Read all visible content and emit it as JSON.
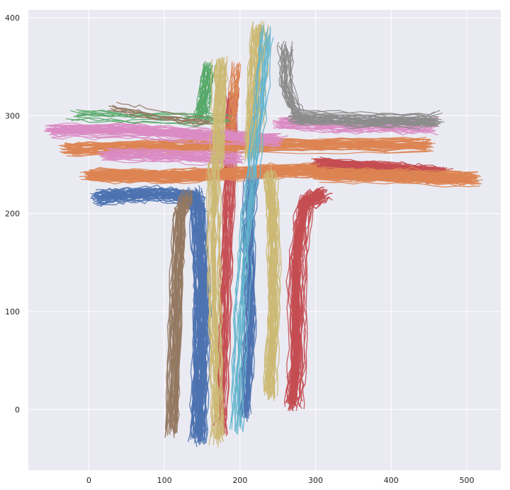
{
  "chart_data": {
    "type": "line",
    "title": "",
    "xlabel": "",
    "ylabel": "",
    "xlim": [
      -80,
      545
    ],
    "ylim": [
      -62,
      408
    ],
    "xticks": [
      0,
      100,
      200,
      300,
      400,
      500
    ],
    "yticks": [
      0,
      100,
      200,
      300,
      400
    ],
    "grid": true,
    "legend": "none",
    "background": "#eaeaf2",
    "palette": [
      "#4c72b0",
      "#dd8452",
      "#55a868",
      "#c44e52",
      "#8172b3",
      "#937860",
      "#da8bc3",
      "#8c8c8c",
      "#ccb974",
      "#64b5cd"
    ],
    "series": [
      {
        "color": "#4c72b0",
        "group": "left-arm-lower",
        "count": 45,
        "points": [
          [
            140,
            215
          ],
          [
            100,
            220
          ],
          [
            50,
            219
          ],
          [
            10,
            216
          ]
        ]
      },
      {
        "color": "#4c72b0",
        "group": "bottom-center",
        "count": 60,
        "points": [
          [
            140,
            220
          ],
          [
            145,
            200
          ],
          [
            150,
            120
          ],
          [
            148,
            50
          ],
          [
            145,
            -30
          ]
        ]
      },
      {
        "color": "#4c72b0",
        "group": "bottom-right-strands",
        "count": 35,
        "points": [
          [
            215,
            240
          ],
          [
            210,
            180
          ],
          [
            212,
            90
          ],
          [
            205,
            -5
          ]
        ]
      },
      {
        "color": "#937860",
        "group": "brown-leg",
        "count": 35,
        "points": [
          [
            130,
            220
          ],
          [
            120,
            200
          ],
          [
            115,
            100
          ],
          [
            110,
            -20
          ]
        ]
      },
      {
        "color": "#c44e52",
        "group": "right-leg",
        "count": 70,
        "points": [
          [
            310,
            220
          ],
          [
            285,
            210
          ],
          [
            275,
            150
          ],
          [
            275,
            50
          ],
          [
            270,
            5
          ]
        ]
      },
      {
        "color": "#c44e52",
        "group": "right-arm-lower",
        "count": 70,
        "points": [
          [
            300,
            250
          ],
          [
            400,
            245
          ],
          [
            470,
            240
          ]
        ]
      },
      {
        "color": "#c44e52",
        "group": "center-strands",
        "count": 25,
        "points": [
          [
            190,
            320
          ],
          [
            185,
            200
          ],
          [
            180,
            100
          ],
          [
            175,
            -20
          ]
        ]
      },
      {
        "color": "#dd8452",
        "group": "arm-orange-left",
        "count": 60,
        "points": [
          [
            0,
            240
          ],
          [
            100,
            238
          ],
          [
            200,
            242
          ],
          [
            300,
            245
          ]
        ]
      },
      {
        "color": "#dd8452",
        "group": "arm-orange-right",
        "count": 60,
        "points": [
          [
            300,
            240
          ],
          [
            400,
            238
          ],
          [
            510,
            235
          ]
        ]
      },
      {
        "color": "#dd8452",
        "group": "arm-orange-upper",
        "count": 40,
        "points": [
          [
            -30,
            265
          ],
          [
            100,
            268
          ],
          [
            250,
            270
          ],
          [
            450,
            270
          ]
        ]
      },
      {
        "color": "#dd8452",
        "group": "top-orange",
        "count": 15,
        "points": [
          [
            195,
            350
          ],
          [
            190,
            300
          ],
          [
            185,
            260
          ]
        ]
      },
      {
        "color": "#da8bc3",
        "group": "left-arm-pink",
        "count": 50,
        "points": [
          [
            -50,
            285
          ],
          [
            50,
            285
          ],
          [
            150,
            280
          ],
          [
            250,
            275
          ]
        ]
      },
      {
        "color": "#da8bc3",
        "group": "left-arm-pink-lower",
        "count": 30,
        "points": [
          [
            20,
            260
          ],
          [
            120,
            258
          ],
          [
            200,
            255
          ]
        ]
      },
      {
        "color": "#da8bc3",
        "group": "right-arm-pink",
        "count": 30,
        "points": [
          [
            250,
            292
          ],
          [
            350,
            290
          ],
          [
            455,
            290
          ]
        ]
      },
      {
        "color": "#55a868",
        "group": "top-green",
        "count": 30,
        "points": [
          [
            160,
            350
          ],
          [
            155,
            320
          ],
          [
            150,
            300
          ]
        ]
      },
      {
        "color": "#55a868",
        "group": "left-arm-green",
        "count": 10,
        "points": [
          [
            -20,
            300
          ],
          [
            80,
            298
          ],
          [
            180,
            295
          ]
        ]
      },
      {
        "color": "#ccb974",
        "group": "top-yellow-left",
        "count": 35,
        "points": [
          [
            175,
            355
          ],
          [
            172,
            300
          ],
          [
            170,
            250
          ]
        ]
      },
      {
        "color": "#ccb974",
        "group": "top-yellow-center",
        "count": 45,
        "points": [
          [
            225,
            390
          ],
          [
            220,
            320
          ],
          [
            215,
            260
          ]
        ]
      },
      {
        "color": "#ccb974",
        "group": "yellow-leg",
        "count": 35,
        "points": [
          [
            240,
            240
          ],
          [
            245,
            180
          ],
          [
            245,
            100
          ],
          [
            240,
            15
          ]
        ]
      },
      {
        "color": "#ccb974",
        "group": "yellow-bottom-left",
        "count": 25,
        "points": [
          [
            165,
            250
          ],
          [
            165,
            150
          ],
          [
            168,
            50
          ],
          [
            170,
            -30
          ]
        ]
      },
      {
        "color": "#8c8c8c",
        "group": "top-gray",
        "count": 25,
        "points": [
          [
            260,
            370
          ],
          [
            260,
            330
          ],
          [
            275,
            300
          ]
        ]
      },
      {
        "color": "#8c8c8c",
        "group": "right-arm-gray",
        "count": 35,
        "points": [
          [
            270,
            298
          ],
          [
            370,
            295
          ],
          [
            460,
            295
          ]
        ]
      },
      {
        "color": "#937860",
        "group": "left-arm-brown-top",
        "count": 8,
        "points": [
          [
            30,
            310
          ],
          [
            90,
            300
          ],
          [
            160,
            295
          ]
        ]
      },
      {
        "color": "#64b5cd",
        "group": "light-blue",
        "count": 15,
        "points": [
          [
            235,
            385
          ],
          [
            225,
            300
          ],
          [
            210,
            200
          ],
          [
            200,
            100
          ],
          [
            195,
            -20
          ]
        ]
      }
    ]
  }
}
